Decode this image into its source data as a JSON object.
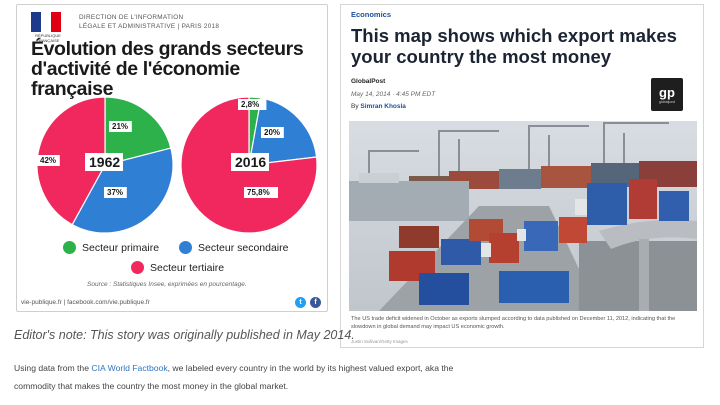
{
  "infographic": {
    "org_line1": "DIRECTION DE L'INFORMATION",
    "org_line2": "LÉGALE ET ADMINISTRATIVE | PARIS 2018",
    "gov_logo_text": "RÉPUBLIQUE FRANÇAISE",
    "title": "Évolution des grands secteurs d'activité de l'économie française",
    "pies": [
      {
        "year": "1962",
        "slices": [
          {
            "label": "21%",
            "value": 21,
            "sector": "primaire"
          },
          {
            "label": "37%",
            "value": 37,
            "sector": "secondaire"
          },
          {
            "label": "42%",
            "value": 42,
            "sector": "tertiaire"
          }
        ]
      },
      {
        "year": "2016",
        "slices": [
          {
            "label": "2,8%",
            "value": 2.8,
            "sector": "primaire"
          },
          {
            "label": "20%",
            "value": 20,
            "sector": "secondaire"
          },
          {
            "label": "75,8%",
            "value": 75.8,
            "sector": "tertiaire"
          }
        ]
      }
    ],
    "legend": {
      "primaire": "Secteur primaire",
      "secondaire": "Secteur secondaire",
      "tertiaire": "Secteur tertiaire"
    },
    "colors": {
      "primaire": "#2db14a",
      "secondaire": "#2f7fd4",
      "tertiaire": "#f0285d"
    },
    "source": "Source : Statistiques Insee, exprimées en pourcentage.",
    "footer": "vie-publique.fr | facebook.com/vie.publique.fr"
  },
  "article": {
    "category": "Economics",
    "title": "This map shows which export makes your country the most money",
    "source": "GlobalPost",
    "date": "May 14, 2014 · 4:45 PM EDT",
    "by": "By",
    "author": "Simran Khosla",
    "logo_text": "gp",
    "logo_sub": "globalpost",
    "caption": "The US trade deficit widened in October as exports slumped according to data published on December 11, 2012, indicating that the slowdown in global demand may impact US economic growth.",
    "credit": "Justin Sullivan/Getty Images"
  },
  "editors_note": "Editor's note: This story was originally published in May 2014.",
  "body": {
    "text_before": "Using data from the ",
    "link": "CIA World Factbook",
    "text_after": ", we labeled every country in the world by its highest valued export, aka the commodity that makes the country the most money in the global market."
  },
  "chart_data": {
    "type": "pie",
    "title": "Évolution des grands secteurs d'activité de l'économie française",
    "categories": [
      "Secteur primaire",
      "Secteur secondaire",
      "Secteur tertiaire"
    ],
    "series": [
      {
        "name": "1962",
        "values": [
          21,
          37,
          42
        ]
      },
      {
        "name": "2016",
        "values": [
          2.8,
          20,
          75.8
        ]
      }
    ]
  }
}
